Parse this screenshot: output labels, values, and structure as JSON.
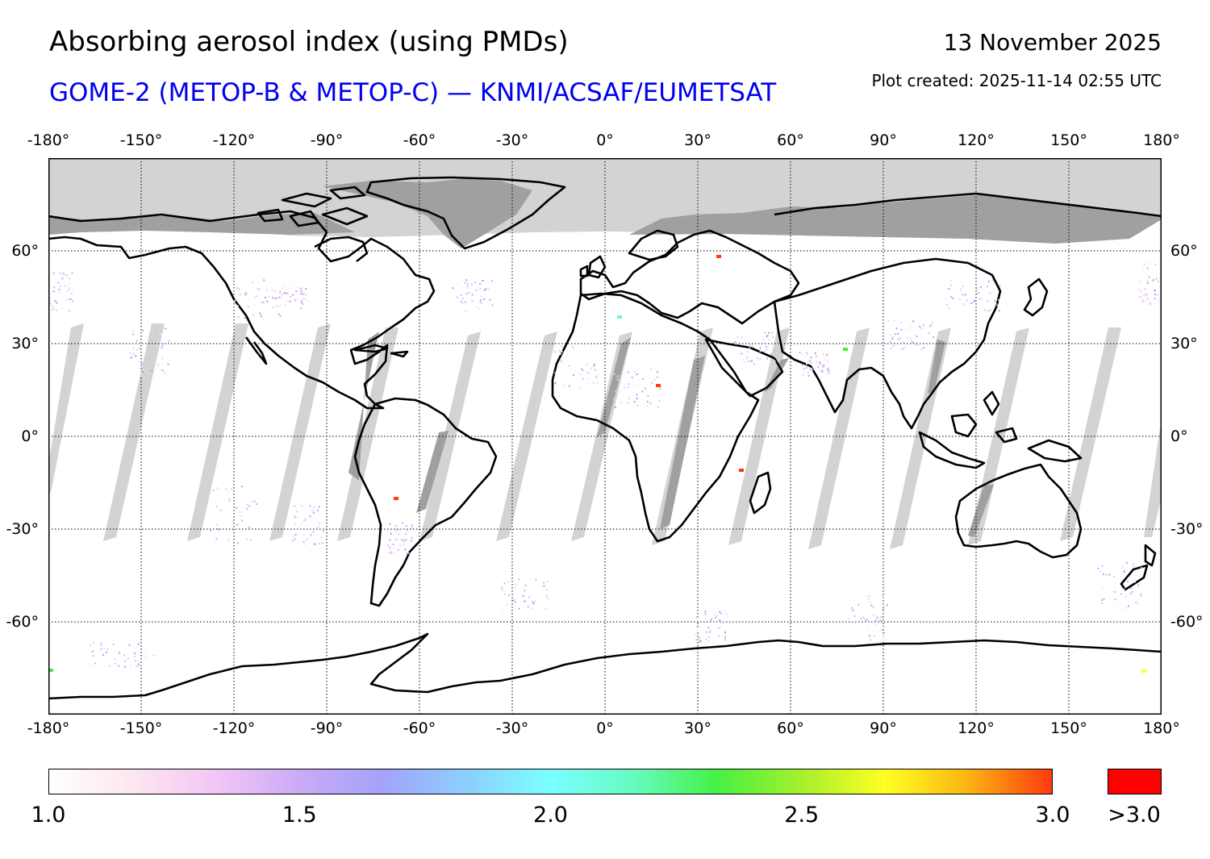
{
  "header": {
    "title": "Absorbing aerosol index (using PMDs)",
    "subtitle": "GOME-2 (METOP-B & METOP-C) — KNMI/ACSAF/EUMETSAT",
    "date": "13 November 2025",
    "plot_created": "Plot created: 2025-11-14 02:55 UTC"
  },
  "axes": {
    "lon_ticks": [
      "-180°",
      "-150°",
      "-120°",
      "-90°",
      "-60°",
      "-30°",
      "0°",
      "30°",
      "60°",
      "90°",
      "120°",
      "150°",
      "180°"
    ],
    "lon_values": [
      -180,
      -150,
      -120,
      -90,
      -60,
      -30,
      0,
      30,
      60,
      90,
      120,
      150,
      180
    ],
    "lat_ticks": [
      "60°",
      "30°",
      "0°",
      "-30°",
      "-60°"
    ],
    "lat_values": [
      60,
      30,
      0,
      -30,
      -60
    ],
    "lon_range": [
      -180,
      180
    ],
    "lat_range": [
      -90,
      90
    ]
  },
  "colorbar": {
    "labels": [
      "1.0",
      "1.5",
      "2.0",
      "2.5",
      "3.0"
    ],
    "values": [
      1.0,
      1.5,
      2.0,
      2.5,
      3.0
    ],
    "range": [
      1.0,
      3.0
    ],
    "overflow_label": ">3.0",
    "overflow_color": "#ff0000",
    "stops": [
      "#ffffff",
      "#fde6f0",
      "#f2c6f6",
      "#c9aaf5",
      "#a3a3fb",
      "#8ccfff",
      "#7affff",
      "#66fbc0",
      "#46f044",
      "#a5f02d",
      "#ffff22",
      "#fbb414",
      "#ff3a0e"
    ]
  },
  "colors": {
    "no_data": "#d3d3d3",
    "land_no_data": "#a0a0a0",
    "coast": "#000000",
    "title_blue": "#0000ee"
  }
}
